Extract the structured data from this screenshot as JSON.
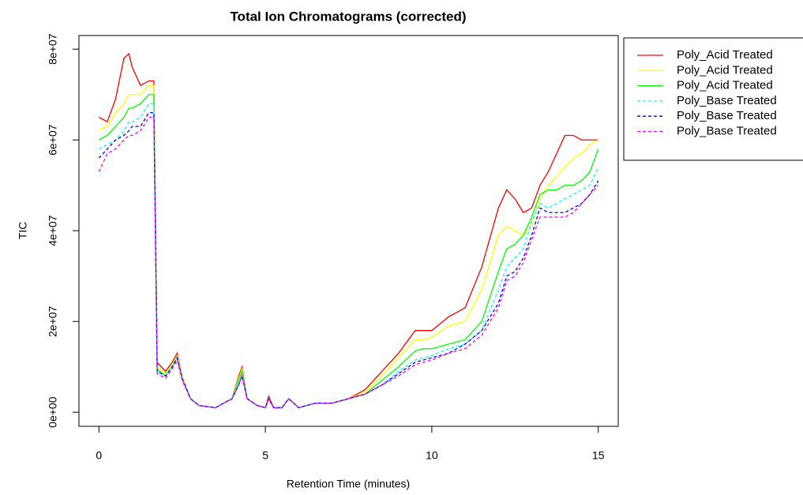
{
  "chart_data": {
    "type": "line",
    "title": "Total Ion Chromatograms (corrected)",
    "x_label": "Retention Time (minutes)",
    "y_label": "TIC",
    "x": [
      0,
      0.25,
      0.5,
      0.75,
      0.9,
      1.0,
      1.25,
      1.5,
      1.65,
      1.75,
      2.0,
      2.2,
      2.35,
      2.5,
      2.75,
      3.0,
      3.5,
      4.0,
      4.2,
      4.3,
      4.45,
      4.75,
      5.0,
      5.1,
      5.25,
      5.5,
      5.7,
      6.0,
      6.5,
      7.0,
      7.5,
      8.0,
      8.5,
      9.0,
      9.5,
      9.75,
      10.0,
      10.5,
      11.0,
      11.5,
      12.0,
      12.25,
      12.5,
      12.75,
      13.0,
      13.25,
      13.5,
      13.75,
      14.0,
      14.25,
      14.5,
      14.75,
      15.0
    ],
    "series": [
      {
        "name": "Poly_Acid Treated",
        "color": "#ff0000",
        "linestyle": "solid",
        "values": [
          65000000.0,
          64000000.0,
          69000000.0,
          78000000.0,
          79000000.0,
          76000000.0,
          72000000.0,
          73000000.0,
          73000000.0,
          11000000.0,
          9000000.0,
          11000000.0,
          13000000.0,
          8000000.0,
          3000000.0,
          1500000.0,
          1000000.0,
          3000000.0,
          8000000.0,
          10000000.0,
          3000000.0,
          1500000.0,
          1000000.0,
          3500000.0,
          1000000.0,
          1000000.0,
          3000000.0,
          1000000.0,
          2000000.0,
          2000000.0,
          3000000.0,
          5000000.0,
          9000000.0,
          13000000.0,
          18000000.0,
          18000000.0,
          18000000.0,
          21000000.0,
          23000000.0,
          32000000.0,
          45000000.0,
          49000000.0,
          47000000.0,
          44000000.0,
          45000000.0,
          50000000.0,
          53000000.0,
          57000000.0,
          61000000.0,
          61000000.0,
          60000000.0,
          60000000.0,
          60000000.0
        ]
      },
      {
        "name": "Poly_Acid Treated",
        "color": "#ffff00",
        "linestyle": "solid",
        "values": [
          62000000.0,
          63000000.0,
          66000000.0,
          68000000.0,
          70000000.0,
          70000000.0,
          70000000.0,
          72000000.0,
          72000000.0,
          10000000.0,
          8500000.0,
          10500000.0,
          12500000.0,
          8000000.0,
          3000000.0,
          1500000.0,
          1000000.0,
          3000000.0,
          7500000.0,
          9500000.0,
          3000000.0,
          1500000.0,
          1000000.0,
          3000000.0,
          1000000.0,
          1000000.0,
          3000000.0,
          1000000.0,
          2000000.0,
          2000000.0,
          3000000.0,
          4500000.0,
          8000000.0,
          12000000.0,
          16000000.0,
          16000000.0,
          16500000.0,
          19000000.0,
          20000000.0,
          27000000.0,
          39000000.0,
          41000000.0,
          40000000.0,
          39000000.0,
          41000000.0,
          47000000.0,
          50000000.0,
          52000000.0,
          54000000.0,
          56000000.0,
          57000000.0,
          59000000.0,
          60000000.0
        ]
      },
      {
        "name": "Poly_Acid Treated",
        "color": "#00ff00",
        "linestyle": "solid",
        "values": [
          60000000.0,
          61000000.0,
          63000000.0,
          65000000.0,
          67000000.0,
          67000000.0,
          68000000.0,
          70000000.0,
          70000000.0,
          9500000.0,
          8000000.0,
          10000000.0,
          12000000.0,
          7500000.0,
          3000000.0,
          1500000.0,
          1000000.0,
          3000000.0,
          7000000.0,
          9000000.0,
          3000000.0,
          1500000.0,
          1000000.0,
          3000000.0,
          1000000.0,
          1000000.0,
          3000000.0,
          1000000.0,
          2000000.0,
          2000000.0,
          3000000.0,
          4000000.0,
          7000000.0,
          10000000.0,
          13500000.0,
          14000000.0,
          14000000.0,
          15000000.0,
          16000000.0,
          20000000.0,
          31000000.0,
          36000000.0,
          37000000.0,
          39000000.0,
          43000000.0,
          48000000.0,
          49000000.0,
          49000000.0,
          50000000.0,
          50000000.0,
          51000000.0,
          53000000.0,
          58000000.0
        ]
      },
      {
        "name": "Poly_Base Treated",
        "color": "#00ffff",
        "linestyle": "dashed",
        "values": [
          58000000.0,
          59000000.0,
          60000000.0,
          62000000.0,
          64000000.0,
          64000000.0,
          65000000.0,
          68000000.0,
          68000000.0,
          9000000.0,
          8000000.0,
          10000000.0,
          12000000.0,
          7500000.0,
          3000000.0,
          1500000.0,
          1000000.0,
          3000000.0,
          6500000.0,
          8500000.0,
          3000000.0,
          1500000.0,
          1000000.0,
          3000000.0,
          1000000.0,
          1000000.0,
          3000000.0,
          1000000.0,
          2000000.0,
          2000000.0,
          3000000.0,
          4000000.0,
          6000000.0,
          9000000.0,
          11500000.0,
          12000000.0,
          12500000.0,
          14000000.0,
          15000000.0,
          18000000.0,
          27000000.0,
          32000000.0,
          34000000.0,
          36000000.0,
          42000000.0,
          46000000.0,
          45000000.0,
          46000000.0,
          47000000.0,
          48000000.0,
          49000000.0,
          50000000.0,
          54000000.0
        ]
      },
      {
        "name": "Poly_Base Treated",
        "color": "#0000ff",
        "linestyle": "dashed",
        "values": [
          56000000.0,
          58000000.0,
          60000000.0,
          61000000.0,
          62000000.0,
          63000000.0,
          63000000.0,
          66000000.0,
          66000000.0,
          9000000.0,
          8000000.0,
          10000000.0,
          12000000.0,
          7500000.0,
          3000000.0,
          1500000.0,
          1000000.0,
          3000000.0,
          6000000.0,
          8000000.0,
          3000000.0,
          1500000.0,
          1000000.0,
          3000000.0,
          1000000.0,
          1000000.0,
          3000000.0,
          1000000.0,
          2000000.0,
          2000000.0,
          3000000.0,
          4000000.0,
          6000000.0,
          8500000.0,
          11000000.0,
          11500000.0,
          12000000.0,
          13000000.0,
          15000000.0,
          18000000.0,
          24000000.0,
          30000000.0,
          31000000.0,
          34000000.0,
          39000000.0,
          45000000.0,
          44000000.0,
          44000000.0,
          44000000.0,
          45000000.0,
          46000000.0,
          48000000.0,
          51000000.0
        ]
      },
      {
        "name": "Poly_Base Treated",
        "color": "#ff00ff",
        "linestyle": "dashed",
        "values": [
          53000000.0,
          57000000.0,
          58000000.0,
          60000000.0,
          61000000.0,
          61000000.0,
          62000000.0,
          65000000.0,
          65000000.0,
          8500000.0,
          7500000.0,
          9500000.0,
          11500000.0,
          7000000.0,
          3000000.0,
          1500000.0,
          1000000.0,
          3000000.0,
          6000000.0,
          8000000.0,
          3000000.0,
          1500000.0,
          1000000.0,
          3000000.0,
          1000000.0,
          1000000.0,
          3000000.0,
          1000000.0,
          2000000.0,
          2000000.0,
          3000000.0,
          4000000.0,
          6000000.0,
          8000000.0,
          10500000.0,
          11000000.0,
          11500000.0,
          13000000.0,
          14000000.0,
          17000000.0,
          23000000.0,
          29000000.0,
          30000000.0,
          33000000.0,
          38000000.0,
          43000000.0,
          43000000.0,
          43000000.0,
          43000000.0,
          44000000.0,
          46000000.0,
          48000000.0,
          50000000.0
        ]
      }
    ],
    "xlim": [
      -0.6,
      15.6
    ],
    "xticks": [
      0,
      5,
      10,
      15
    ],
    "ylim": [
      -3100000,
      83000000
    ],
    "yticks": [
      {
        "value": 0,
        "label": "0e+00"
      },
      {
        "value": 20000000,
        "label": "2e+07"
      },
      {
        "value": 40000000,
        "label": "4e+07"
      },
      {
        "value": 60000000,
        "label": "6e+07"
      },
      {
        "value": 80000000,
        "label": "8e+07"
      }
    ],
    "grid": false,
    "legend": "outside-right"
  }
}
